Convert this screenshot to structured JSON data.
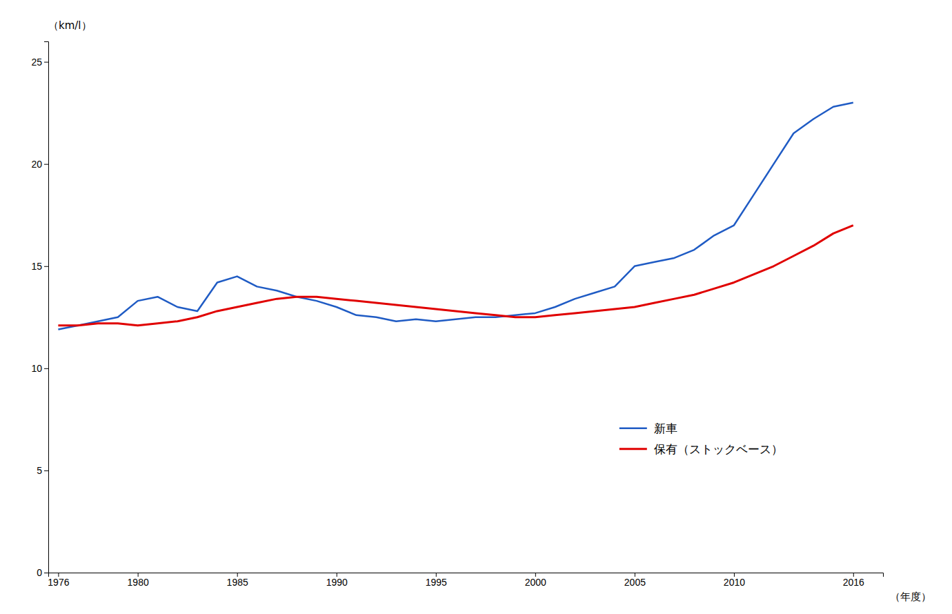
{
  "chart_data": {
    "type": "line",
    "x": [
      1976,
      1977,
      1978,
      1979,
      1980,
      1981,
      1982,
      1983,
      1984,
      1985,
      1986,
      1987,
      1988,
      1989,
      1990,
      1991,
      1992,
      1993,
      1994,
      1995,
      1996,
      1997,
      1998,
      1999,
      2000,
      2001,
      2002,
      2003,
      2004,
      2005,
      2006,
      2007,
      2008,
      2009,
      2010,
      2011,
      2012,
      2013,
      2014,
      2015,
      2016
    ],
    "series": [
      {
        "name": "新車",
        "color": "#1f5bc4",
        "values": [
          11.9,
          12.1,
          12.3,
          12.5,
          13.3,
          13.5,
          13.0,
          12.8,
          14.2,
          14.5,
          14.0,
          13.8,
          13.5,
          13.3,
          13.0,
          12.6,
          12.5,
          12.3,
          12.4,
          12.3,
          12.4,
          12.5,
          12.5,
          12.6,
          12.7,
          13.0,
          13.4,
          13.7,
          14.0,
          15.0,
          15.2,
          15.4,
          15.8,
          16.5,
          17.0,
          18.5,
          20.0,
          21.5,
          22.2,
          22.8,
          23.0
        ]
      },
      {
        "name": "保有（ストックベース）",
        "color": "#e00000",
        "values": [
          12.1,
          12.1,
          12.2,
          12.2,
          12.1,
          12.2,
          12.3,
          12.5,
          12.8,
          13.0,
          13.2,
          13.4,
          13.5,
          13.5,
          13.4,
          13.3,
          13.2,
          13.1,
          13.0,
          12.9,
          12.8,
          12.7,
          12.6,
          12.5,
          12.5,
          12.6,
          12.7,
          12.8,
          12.9,
          13.0,
          13.2,
          13.4,
          13.6,
          13.9,
          14.2,
          14.6,
          15.0,
          15.5,
          16.0,
          16.6,
          17.0
        ]
      }
    ],
    "xlim": [
      1975.5,
      2017.5
    ],
    "xticks": [
      1976,
      1980,
      1985,
      1990,
      1995,
      2000,
      2005,
      2010,
      2016
    ],
    "ylim": [
      0,
      26
    ],
    "yticks": [
      0,
      5,
      10,
      15,
      20,
      25
    ],
    "xlabel": "（年度）",
    "ylabel": "（km/l）",
    "legend": "lower right",
    "grid": false
  }
}
